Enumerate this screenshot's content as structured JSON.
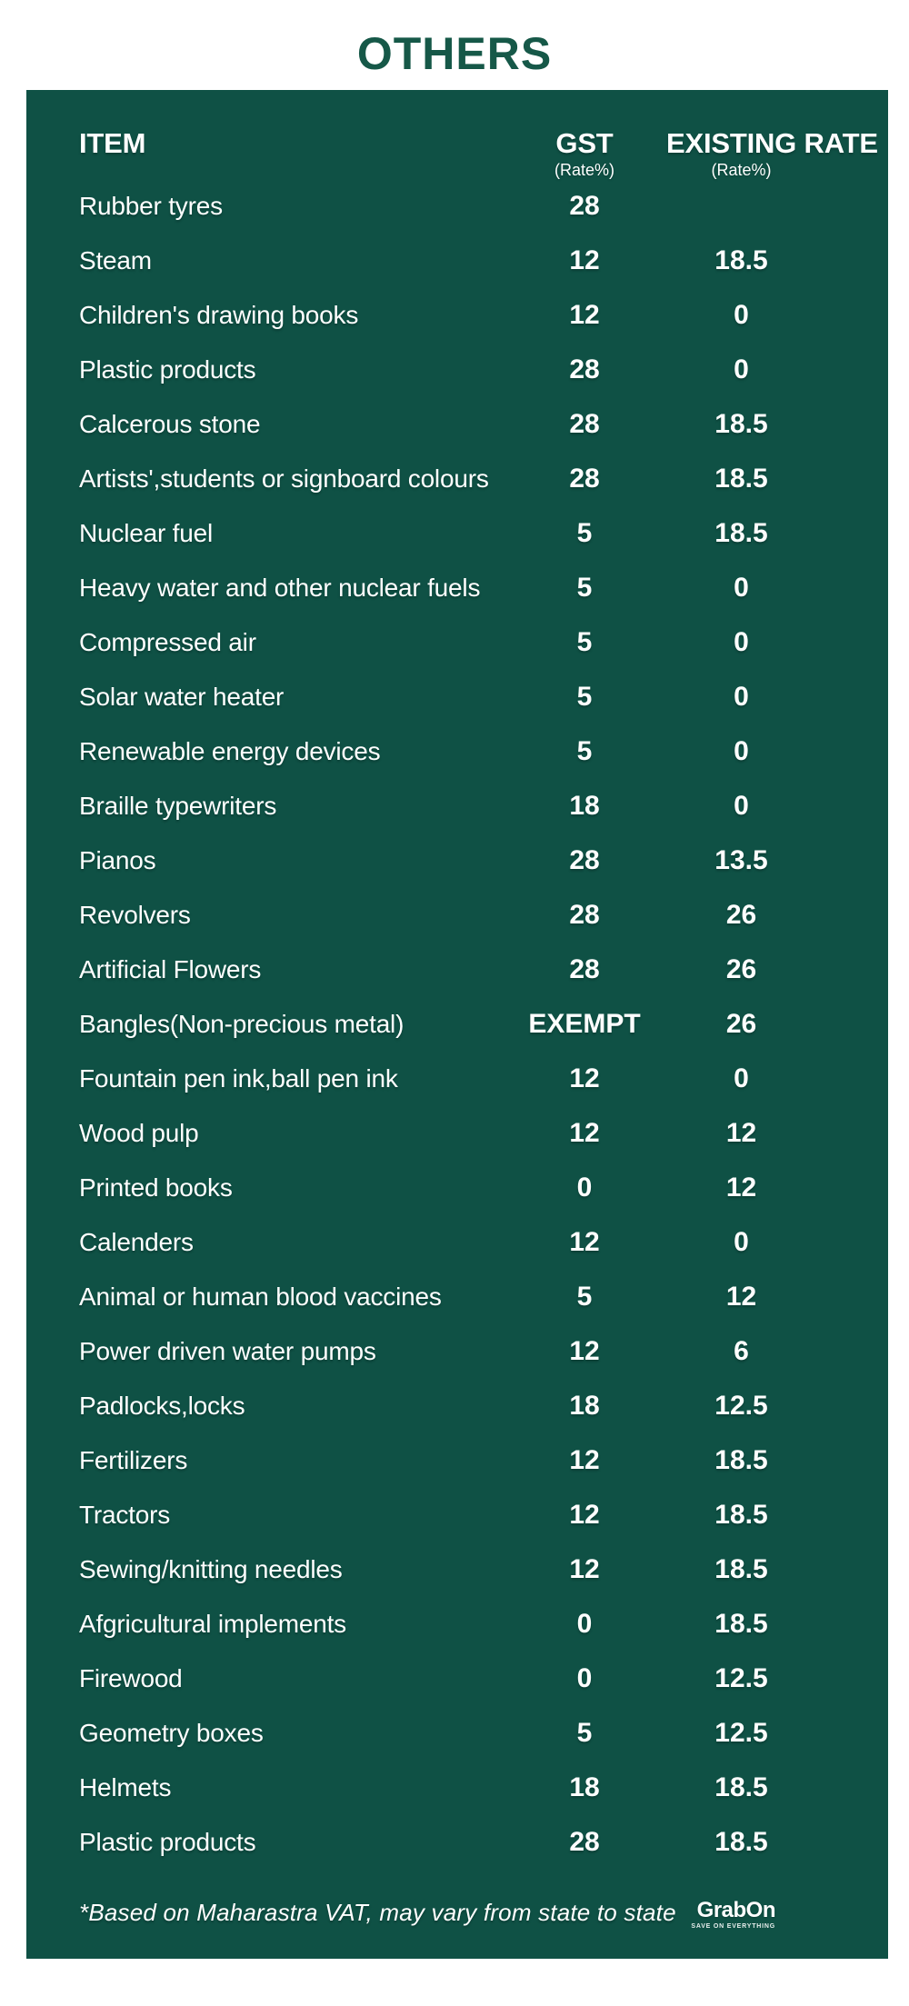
{
  "title": "OTHERS",
  "header": {
    "item": "ITEM",
    "gst": "GST",
    "gst_sub": "(Rate%)",
    "existing": "EXISTING RATE",
    "existing_sub": "(Rate%)"
  },
  "chart_data": {
    "type": "table",
    "title": "OTHERS",
    "columns": [
      "ITEM",
      "GST (Rate%)",
      "EXISTING RATE (Rate%)"
    ],
    "rows": [
      [
        "Rubber tyres",
        "28",
        ""
      ],
      [
        "Steam",
        "12",
        "18.5"
      ],
      [
        "Children's drawing books",
        "12",
        "0"
      ],
      [
        "Plastic products",
        "28",
        "0"
      ],
      [
        "Calcerous stone",
        "28",
        "18.5"
      ],
      [
        "Artists',students or signboard colours",
        "28",
        "18.5"
      ],
      [
        "Nuclear fuel",
        "5",
        "18.5"
      ],
      [
        "Heavy water and other nuclear fuels",
        "5",
        "0"
      ],
      [
        "Compressed air",
        "5",
        "0"
      ],
      [
        "Solar water heater",
        "5",
        "0"
      ],
      [
        "Renewable energy devices",
        "5",
        "0"
      ],
      [
        "Braille typewriters",
        "18",
        "0"
      ],
      [
        "Pianos",
        "28",
        "13.5"
      ],
      [
        "Revolvers",
        "28",
        "26"
      ],
      [
        "Artificial Flowers",
        "28",
        "26"
      ],
      [
        "Bangles(Non-precious metal)",
        "EXEMPT",
        "26"
      ],
      [
        "Fountain pen ink,ball pen ink",
        "12",
        "0"
      ],
      [
        "Wood pulp",
        "12",
        "12"
      ],
      [
        "Printed books",
        "0",
        "12"
      ],
      [
        "Calenders",
        "12",
        "0"
      ],
      [
        "Animal or human blood vaccines",
        "5",
        "12"
      ],
      [
        "Power driven water pumps",
        "12",
        "6"
      ],
      [
        "Padlocks,locks",
        "18",
        "12.5"
      ],
      [
        "Fertilizers",
        "12",
        "18.5"
      ],
      [
        "Tractors",
        "12",
        "18.5"
      ],
      [
        "Sewing/knitting needles",
        "12",
        "18.5"
      ],
      [
        "Afgricultural implements",
        "0",
        "18.5"
      ],
      [
        "Firewood",
        "0",
        "12.5"
      ],
      [
        "Geometry boxes",
        "5",
        "12.5"
      ],
      [
        "Helmets",
        "18",
        "18.5"
      ],
      [
        "Plastic products",
        "28",
        "18.5"
      ]
    ]
  },
  "footnote": "*Based on Maharastra VAT, may vary from state to state",
  "logo": {
    "name": "GrabOn",
    "tagline": "SAVE ON EVERYTHING"
  },
  "colors": {
    "panel_green": "#0f5145",
    "title_green": "#165848",
    "text_white": "#ffffff"
  }
}
